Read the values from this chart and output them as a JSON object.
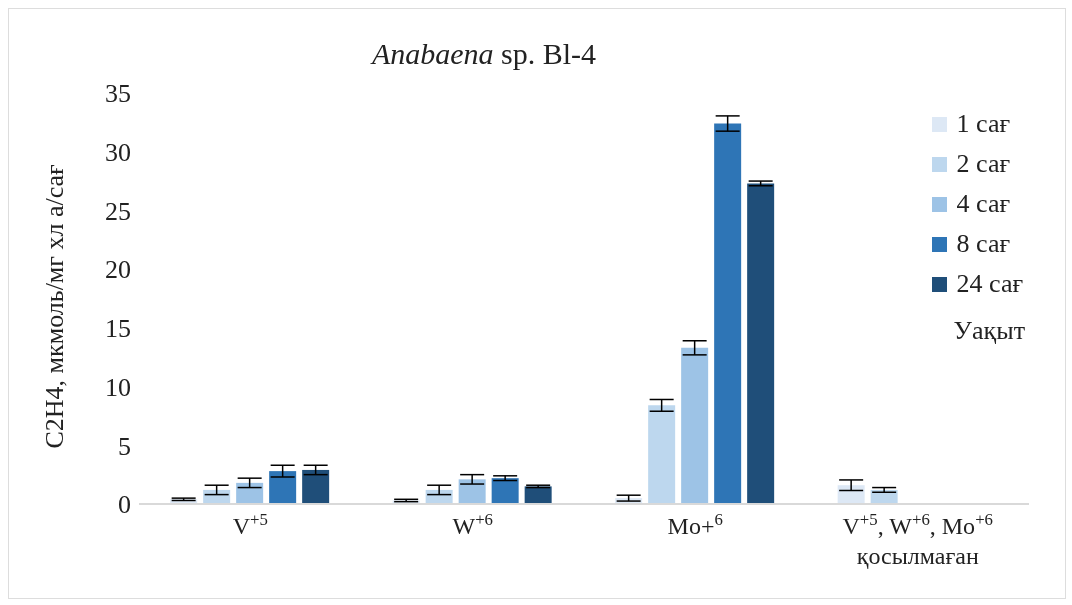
{
  "chart_data": {
    "type": "bar",
    "title": "Anabaena sp. Bl-4",
    "ylabel": "C2H4, мкмоль/мг хл а/сағ",
    "legend_title": "Уақыт",
    "categories": [
      "V$^{+5}$",
      "W$^{+6}$",
      "Mo+$^{6}$",
      "V$^{+5}$, W$^{+6}$, Mo$^{+6}$\nқосылмаған"
    ],
    "series": [
      {
        "name": "1 сағ",
        "color": "#dde8f5",
        "values": [
          0.4,
          0.3,
          0.5,
          1.6
        ],
        "errors": [
          0.1,
          0.1,
          0.25,
          0.45
        ]
      },
      {
        "name": "2 сағ",
        "color": "#bdd7ee",
        "values": [
          1.2,
          1.2,
          8.4,
          1.2
        ],
        "errors": [
          0.4,
          0.4,
          0.5,
          0.2
        ]
      },
      {
        "name": "4 сағ",
        "color": "#9dc3e6",
        "values": [
          1.8,
          2.1,
          13.3,
          null
        ],
        "errors": [
          0.4,
          0.4,
          0.6,
          null
        ]
      },
      {
        "name": "8 сағ",
        "color": "#2e75b6",
        "values": [
          2.8,
          2.2,
          32.4,
          null
        ],
        "errors": [
          0.5,
          0.2,
          0.65,
          null
        ]
      },
      {
        "name": "24 сағ",
        "color": "#1f4e79",
        "values": [
          2.9,
          1.5,
          27.3,
          null
        ],
        "errors": [
          0.4,
          0.1,
          0.2,
          null
        ]
      }
    ],
    "ylim": [
      0,
      35
    ],
    "yticks": [
      0,
      5,
      10,
      15,
      20,
      25,
      30,
      35
    ],
    "legend": "right"
  }
}
